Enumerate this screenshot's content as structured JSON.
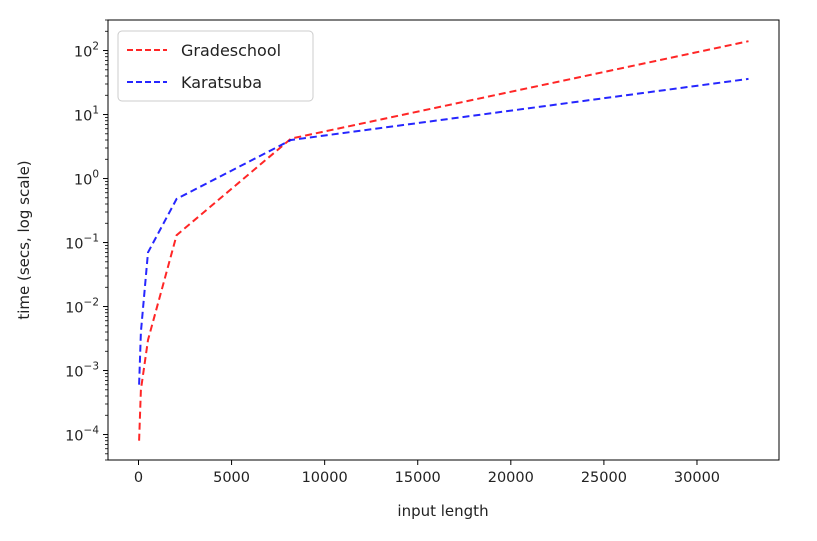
{
  "chart_data": {
    "type": "line",
    "title": "",
    "xlabel": "input length",
    "ylabel": "time (secs, log scale)",
    "yscale": "log",
    "xlim": [
      -1638,
      34406
    ],
    "ylim": [
      4e-05,
      300
    ],
    "xticks": [
      0,
      5000,
      10000,
      15000,
      20000,
      25000,
      30000
    ],
    "yticks": [
      {
        "exp": "-4",
        "value": 0.0001
      },
      {
        "exp": "-3",
        "value": 0.001
      },
      {
        "exp": "-2",
        "value": 0.01
      },
      {
        "exp": "-1",
        "value": 0.1
      },
      {
        "exp": "0",
        "value": 1
      },
      {
        "exp": "1",
        "value": 10
      },
      {
        "exp": "2",
        "value": 100
      }
    ],
    "ytick_base": "10",
    "grid": false,
    "legend_position": "top-left",
    "series": [
      {
        "name": "Gradeschool",
        "color": "#ff0000",
        "x": [
          32,
          128,
          512,
          2048,
          8192,
          32768
        ],
        "y": [
          8e-05,
          0.0005,
          0.003,
          0.13,
          4.2,
          140
        ]
      },
      {
        "name": "Karatsuba",
        "color": "#0000ff",
        "x": [
          32,
          128,
          512,
          2048,
          8192,
          32768
        ],
        "y": [
          0.0006,
          0.004,
          0.07,
          0.48,
          4.0,
          36
        ]
      }
    ]
  }
}
